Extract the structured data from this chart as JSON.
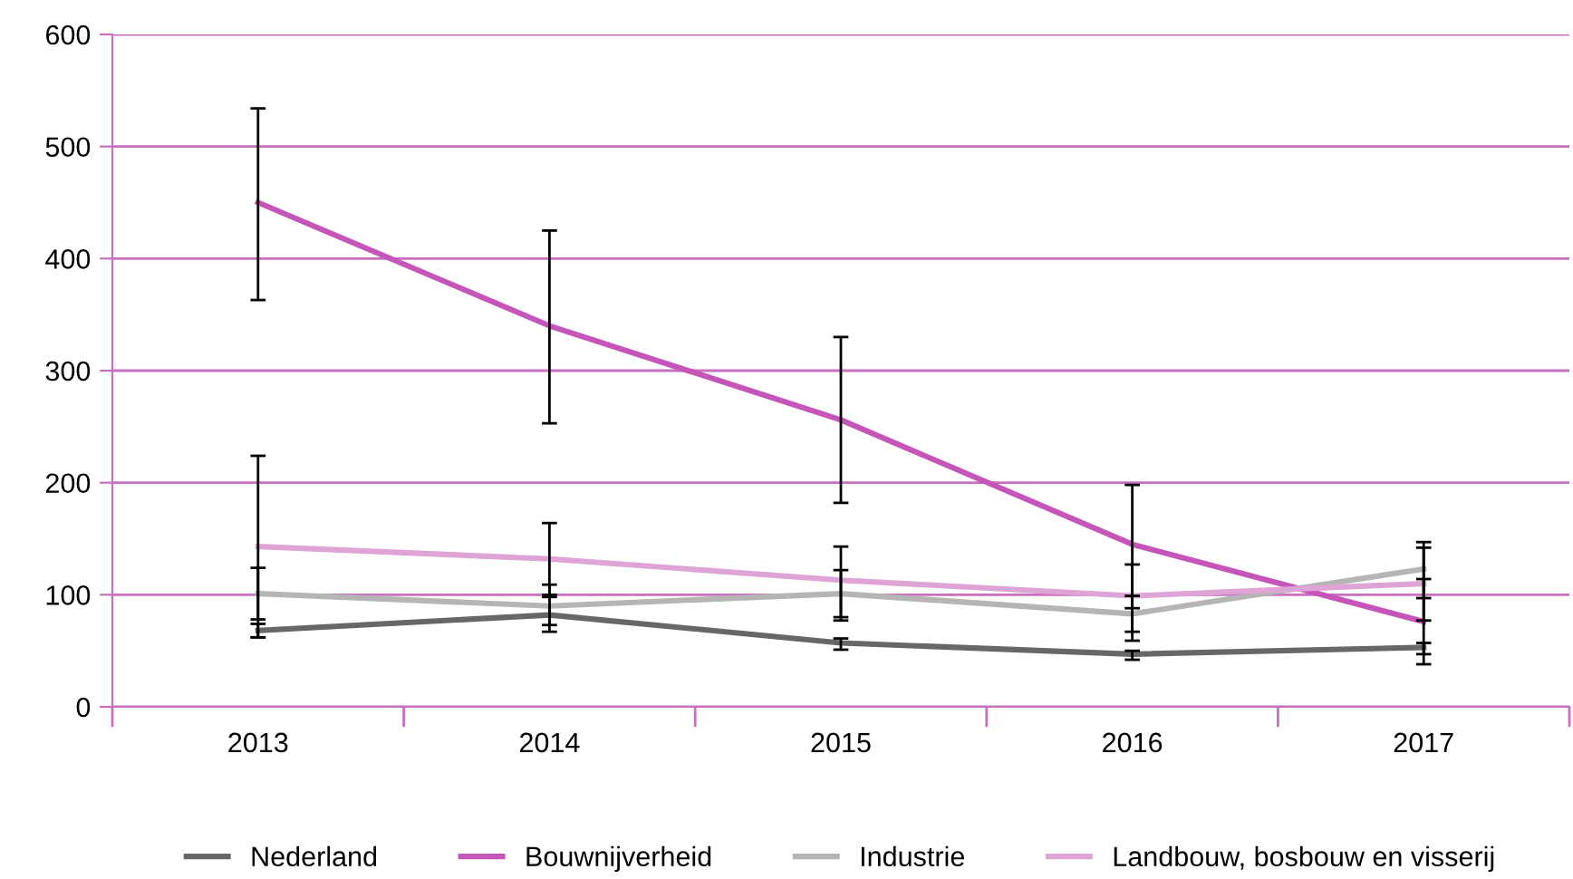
{
  "chart_data": {
    "type": "line",
    "categories": [
      "2013",
      "2014",
      "2015",
      "2016",
      "2017"
    ],
    "series": [
      {
        "name": "Nederland",
        "color": "#676767",
        "values": [
          68,
          82,
          57,
          47,
          53
        ],
        "errors": [
          [
            62,
            74
          ],
          [
            67,
            98
          ],
          [
            51,
            61
          ],
          [
            42,
            50
          ],
          [
            47,
            57
          ]
        ]
      },
      {
        "name": "Bouwnijverheid",
        "color": "#c655b9",
        "values": [
          450,
          340,
          256,
          145,
          76
        ],
        "errors": [
          [
            363,
            534
          ],
          [
            253,
            425
          ],
          [
            182,
            330
          ],
          [
            88,
            198
          ],
          [
            38,
            114
          ]
        ]
      },
      {
        "name": "Industrie",
        "color": "#b5b5b5",
        "values": [
          101,
          90,
          101,
          83,
          123
        ],
        "errors": [
          [
            78,
            124
          ],
          [
            73,
            109
          ],
          [
            77,
            122
          ],
          [
            59,
            99
          ],
          [
            97,
            147
          ]
        ]
      },
      {
        "name": "Landbouw, bosbouw en visserij",
        "color": "#dea4d6",
        "values": [
          143,
          132,
          113,
          99,
          110
        ],
        "errors": [
          [
            62,
            224
          ],
          [
            100,
            164
          ],
          [
            80,
            143
          ],
          [
            67,
            127
          ],
          [
            77,
            142
          ]
        ]
      }
    ],
    "ylim": [
      0,
      600
    ],
    "yticks": [
      0,
      100,
      200,
      300,
      400,
      500,
      600
    ],
    "grid": "y",
    "legend": "bottom",
    "marker": "none",
    "line_style": "solid"
  }
}
